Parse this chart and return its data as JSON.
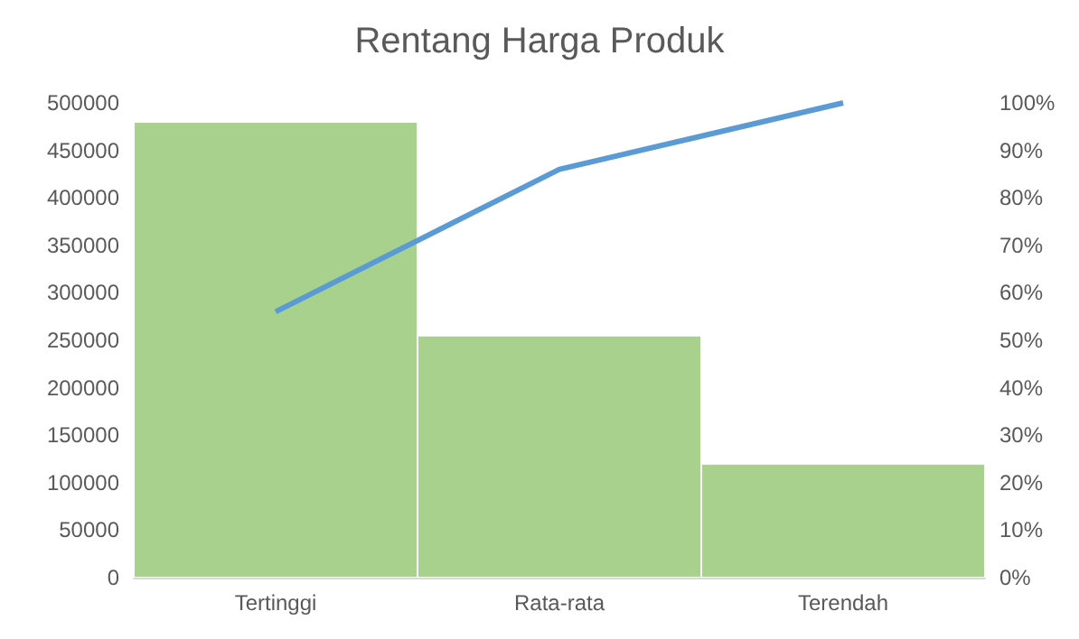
{
  "chart_data": {
    "type": "bar",
    "title": "Rentang Harga Produk",
    "categories": [
      "Tertinggi",
      "Rata-rata",
      "Terendah"
    ],
    "series": [
      {
        "color": "#a9d18e",
        "values": [
          480000,
          255000,
          120000
        ]
      },
      {
        "type": "line",
        "axis": "y2",
        "color": "#5b9bd5",
        "values": [
          56,
          86,
          100
        ]
      }
    ],
    "ylim": [
      0,
      500000
    ],
    "yticks": [
      0,
      50000,
      100000,
      150000,
      200000,
      250000,
      300000,
      350000,
      400000,
      450000,
      500000
    ],
    "y2lim": [
      0,
      100
    ],
    "y2ticks": [
      {
        "value": 0,
        "label": "0%"
      },
      {
        "value": 10,
        "label": "10%"
      },
      {
        "value": 20,
        "label": "20%"
      },
      {
        "value": 30,
        "label": "30%"
      },
      {
        "value": 40,
        "label": "40%"
      },
      {
        "value": 50,
        "label": "50%"
      },
      {
        "value": 60,
        "label": "60%"
      },
      {
        "value": 70,
        "label": "70%"
      },
      {
        "value": 80,
        "label": "80%"
      },
      {
        "value": 90,
        "label": "90%"
      },
      {
        "value": 100,
        "label": "100%"
      }
    ],
    "marker": "none",
    "grid": false
  }
}
